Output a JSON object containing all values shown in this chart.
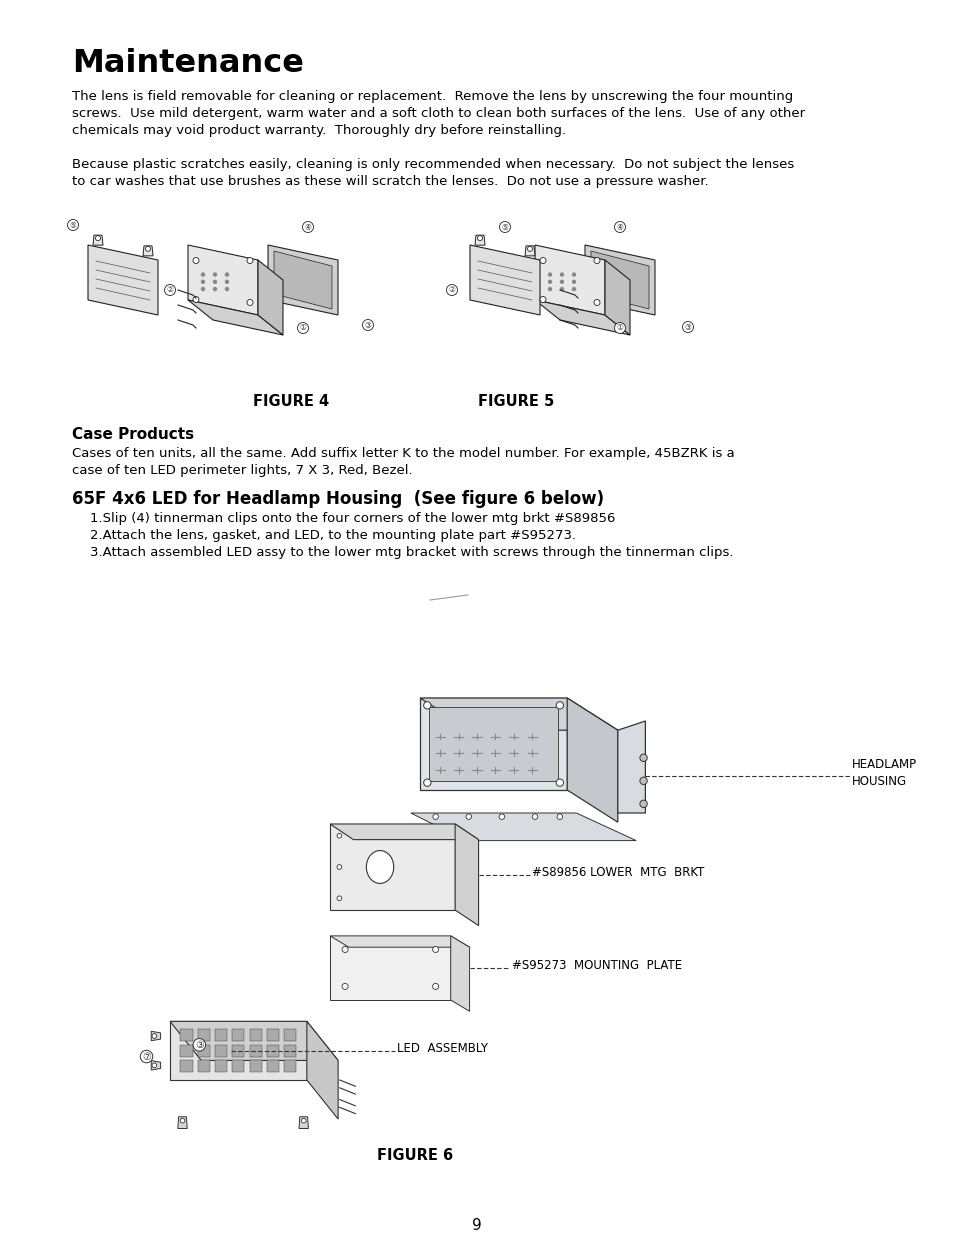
{
  "title": "Maintenance",
  "para1_line1": "The lens is field removable for cleaning or replacement.  Remove the lens by unscrewing the four mounting",
  "para1_line2": "screws.  Use mild detergent, warm water and a soft cloth to clean both surfaces of the lens.  Use of any other",
  "para1_line3": "chemicals may void product warranty.  Thoroughly dry before reinstalling.",
  "para2_line1": "Because plastic scratches easily, cleaning is only recommended when necessary.  Do not subject the lenses",
  "para2_line2": "to car washes that use brushes as these will scratch the lenses.  Do not use a pressure washer.",
  "figure4_label": "FIGURE 4",
  "figure5_label": "FIGURE 5",
  "section2_title": "Case Products",
  "section2_line1": "Cases of ten units, all the same. Add suffix letter K to the model number. For example, 45BZRK is a",
  "section2_line2": "case of ten LED perimeter lights, 7 X 3, Red, Bezel.",
  "section3_title": "65F 4x6 LED for Headlamp Housing  (See figure 6 below)",
  "step1": "1.Slip (4) tinnerman clips onto the four corners of the lower mtg brkt #S89856",
  "step2": "2.Attach the lens, gasket, and LED, to the mounting plate part #S95273.",
  "step3": "3.Attach assembled LED assy to the lower mtg bracket with screws through the tinnerman clips.",
  "figure6_label": "FIGURE 6",
  "headlamp_label1": "HEADLAMP",
  "headlamp_label2": "HOUSING",
  "lower_mtg_label": "#S89856 LOWER  MTG  BRKT",
  "mounting_plate_label": "#S95273  MOUNTING  PLATE",
  "led_assembly_label": "LED  ASSEMBLY",
  "page_number": "9",
  "bg_color": "#ffffff",
  "text_color": "#000000",
  "fig_area_color": "#f8f8f8",
  "line_color": "#333333"
}
